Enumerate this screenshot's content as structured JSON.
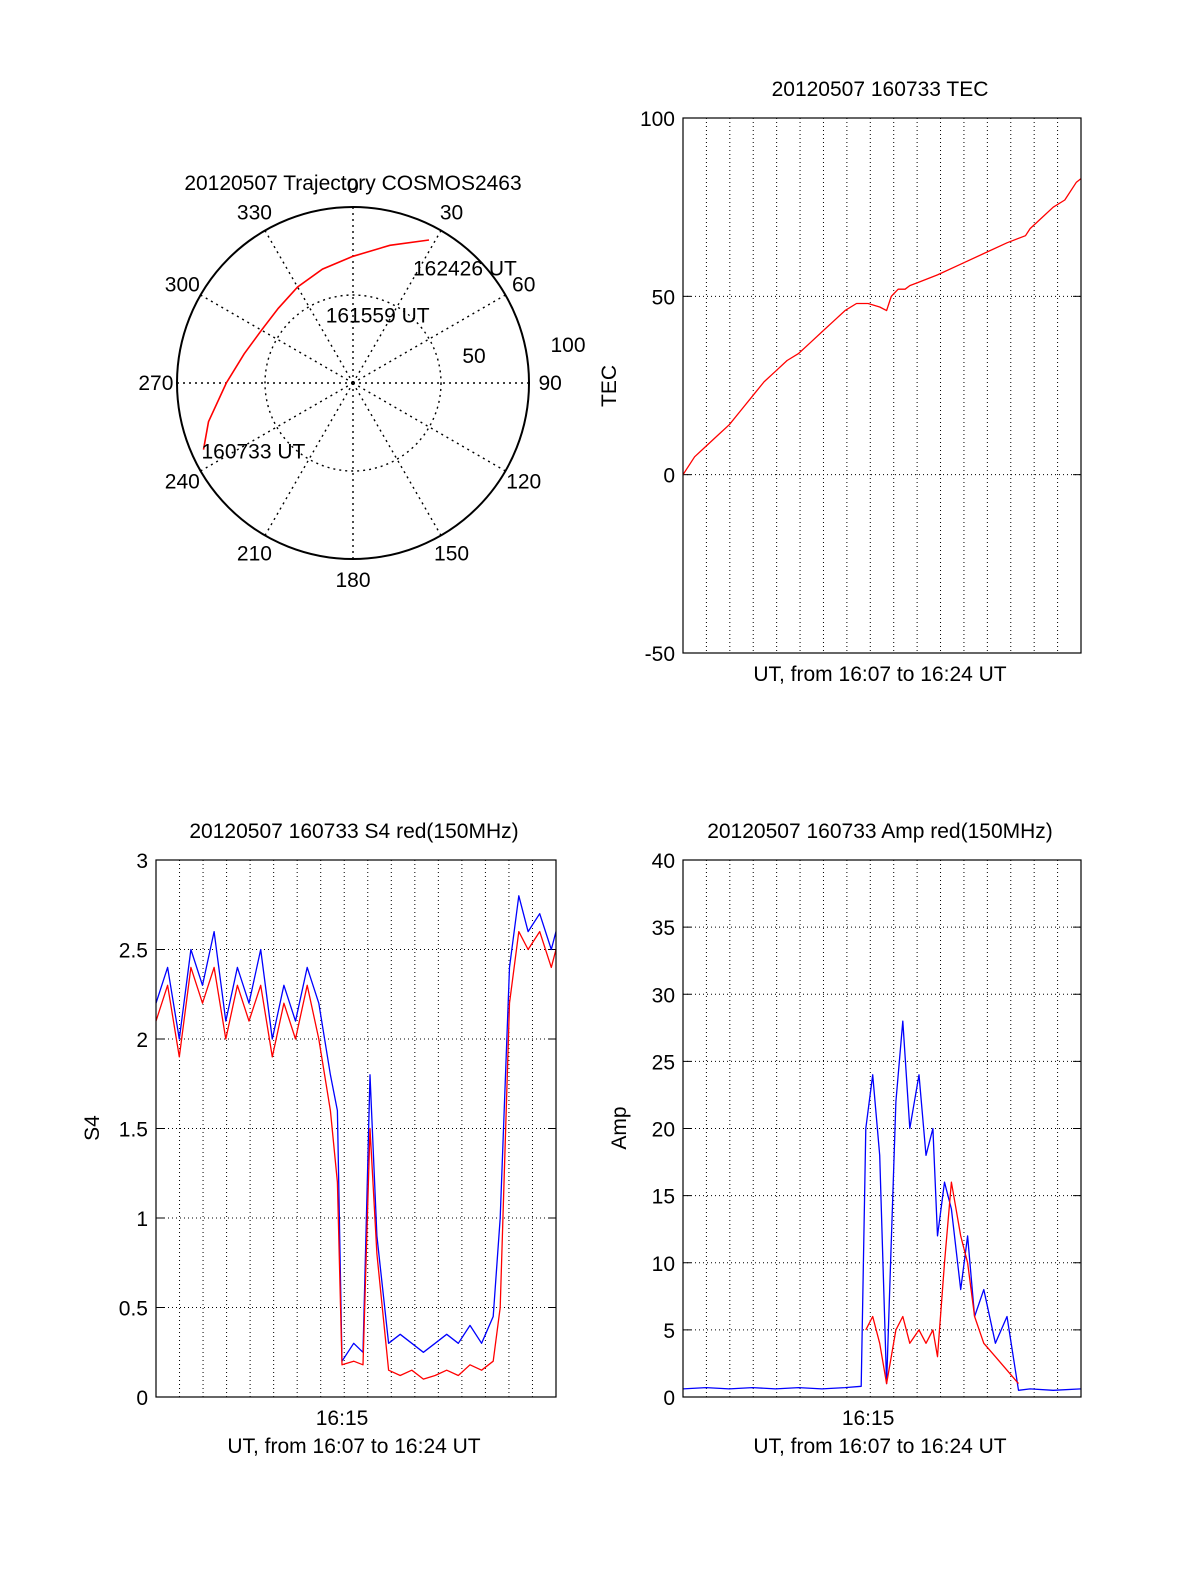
{
  "colors": {
    "red": "#ff0000",
    "blue": "#0000ff",
    "axis": "#000000",
    "grid": "#000000"
  },
  "chart_data": [
    {
      "type": "polar",
      "title": "20120507 Trajectory COSMOS2463",
      "angle_ticks": [
        0,
        30,
        60,
        90,
        120,
        150,
        180,
        210,
        240,
        270,
        300,
        330
      ],
      "radial_ticks": [
        50,
        100
      ],
      "rlim": [
        0,
        100
      ],
      "grid": true,
      "series": [
        {
          "color": "#ff0000",
          "azimuth": [
            246,
            255,
            270,
            285,
            300,
            315,
            330,
            345,
            360,
            375,
            388
          ],
          "radius": [
            93,
            85,
            72,
            64,
            60,
            60,
            63,
            67,
            72,
            81,
            92
          ]
        }
      ],
      "annotations": [
        {
          "text": "160733 UT",
          "azimuth": 246,
          "radius": 93
        },
        {
          "text": "161559 UT",
          "azimuth": 340,
          "radius": 42
        },
        {
          "text": "162426 UT",
          "azimuth": 28,
          "radius": 75
        }
      ]
    },
    {
      "type": "line",
      "title": "20120507 160733 TEC",
      "xlabel": "UT, from 16:07 to 16:24 UT",
      "ylabel": "TEC",
      "xlim": [
        0,
        17.2
      ],
      "ylim": [
        -50,
        100
      ],
      "yticks": [
        -50,
        0,
        50,
        100
      ],
      "grid": true,
      "series": [
        {
          "color": "#ff0000",
          "x": [
            0,
            0.5,
            1.0,
            1.5,
            2.0,
            2.5,
            3.0,
            3.5,
            4.0,
            4.5,
            5.0,
            5.5,
            6.0,
            6.5,
            7.0,
            7.5,
            8.0,
            8.5,
            8.8,
            9.0,
            9.3,
            9.6,
            9.8,
            10.2,
            11.0,
            12.0,
            13.0,
            14.0,
            14.8,
            15.0,
            15.5,
            16.0,
            16.5,
            17.0,
            17.2
          ],
          "y": [
            0,
            5,
            8,
            11,
            14,
            18,
            22,
            26,
            29,
            32,
            34,
            37,
            40,
            43,
            46,
            48,
            48,
            47,
            46,
            50,
            52,
            52,
            53,
            54,
            56,
            59,
            62,
            65,
            67,
            69,
            72,
            75,
            77,
            82,
            83
          ]
        }
      ]
    },
    {
      "type": "line",
      "title": "20120507 160733 S4 red(150MHz)",
      "xlabel": "UT, from 16:07 to 16:24 UT",
      "ylabel": "S4",
      "xlim": [
        0,
        17.2
      ],
      "ylim": [
        0,
        3
      ],
      "xticks": [
        {
          "value": 8,
          "label": "16:15"
        }
      ],
      "yticks": [
        0,
        0.5,
        1,
        1.5,
        2,
        2.5,
        3
      ],
      "grid": true,
      "series": [
        {
          "color": "#0000ff",
          "x": [
            0,
            0.5,
            1,
            1.5,
            2,
            2.5,
            3,
            3.5,
            4,
            4.5,
            5,
            5.5,
            6,
            6.5,
            7,
            7.5,
            7.8,
            8.0,
            8.5,
            8.9,
            9.2,
            9.5,
            10,
            10.5,
            11,
            11.5,
            12,
            12.5,
            13,
            13.5,
            14,
            14.5,
            14.8,
            15.2,
            15.6,
            16,
            16.5,
            17,
            17.2
          ],
          "y": [
            2.2,
            2.4,
            2.0,
            2.5,
            2.3,
            2.6,
            2.1,
            2.4,
            2.2,
            2.5,
            2.0,
            2.3,
            2.1,
            2.4,
            2.2,
            1.8,
            1.6,
            0.2,
            0.3,
            0.25,
            1.8,
            0.9,
            0.3,
            0.35,
            0.3,
            0.25,
            0.3,
            0.35,
            0.3,
            0.4,
            0.3,
            0.45,
            1.0,
            2.4,
            2.8,
            2.6,
            2.7,
            2.5,
            2.6
          ]
        },
        {
          "color": "#ff0000",
          "x": [
            0,
            0.5,
            1,
            1.5,
            2,
            2.5,
            3,
            3.5,
            4,
            4.5,
            5,
            5.5,
            6,
            6.5,
            7,
            7.5,
            7.8,
            8.0,
            8.5,
            8.9,
            9.2,
            9.5,
            10,
            10.5,
            11,
            11.5,
            12,
            12.5,
            13,
            13.5,
            14,
            14.5,
            14.8,
            15.2,
            15.6,
            16,
            16.5,
            17,
            17.2
          ],
          "y": [
            2.1,
            2.3,
            1.9,
            2.4,
            2.2,
            2.4,
            2.0,
            2.3,
            2.1,
            2.3,
            1.9,
            2.2,
            2.0,
            2.3,
            2.0,
            1.6,
            1.2,
            0.18,
            0.2,
            0.18,
            1.5,
            0.8,
            0.15,
            0.12,
            0.15,
            0.1,
            0.12,
            0.15,
            0.12,
            0.18,
            0.15,
            0.2,
            0.5,
            2.2,
            2.6,
            2.5,
            2.6,
            2.4,
            2.5
          ]
        }
      ]
    },
    {
      "type": "line",
      "title": "20120507 160733 Amp red(150MHz)",
      "xlabel": "UT, from 16:07 to 16:24 UT",
      "ylabel": "Amp",
      "xlim": [
        0,
        17.2
      ],
      "ylim": [
        0,
        40
      ],
      "xticks": [
        {
          "value": 8,
          "label": "16:15"
        }
      ],
      "yticks": [
        0,
        5,
        10,
        15,
        20,
        25,
        30,
        35,
        40
      ],
      "grid": true,
      "series": [
        {
          "color": "#0000ff",
          "x": [
            0,
            1,
            2,
            3,
            4,
            5,
            6,
            7,
            7.7,
            7.9,
            8.2,
            8.5,
            8.8,
            9.2,
            9.5,
            9.8,
            10.2,
            10.5,
            10.8,
            11.0,
            11.3,
            11.6,
            12.0,
            12.3,
            12.6,
            13.0,
            13.5,
            14.0,
            14.5,
            15.0,
            16.0,
            17.2
          ],
          "y": [
            0.6,
            0.7,
            0.6,
            0.7,
            0.6,
            0.7,
            0.6,
            0.7,
            0.8,
            20,
            24,
            18,
            1,
            22,
            28,
            20,
            24,
            18,
            20,
            12,
            16,
            14,
            8,
            12,
            6,
            8,
            4,
            6,
            0.5,
            0.6,
            0.5,
            0.6
          ]
        },
        {
          "color": "#ff0000",
          "x": [
            7.9,
            8.2,
            8.5,
            8.8,
            9.2,
            9.5,
            9.8,
            10.2,
            10.5,
            10.8,
            11.0,
            11.3,
            11.6,
            12.0,
            12.3,
            12.6,
            13.0,
            13.5,
            14.0,
            14.5
          ],
          "y": [
            5,
            6,
            4,
            1,
            5,
            6,
            4,
            5,
            4,
            5,
            3,
            10,
            16,
            12,
            10,
            6,
            4,
            3,
            2,
            1
          ]
        }
      ]
    }
  ]
}
